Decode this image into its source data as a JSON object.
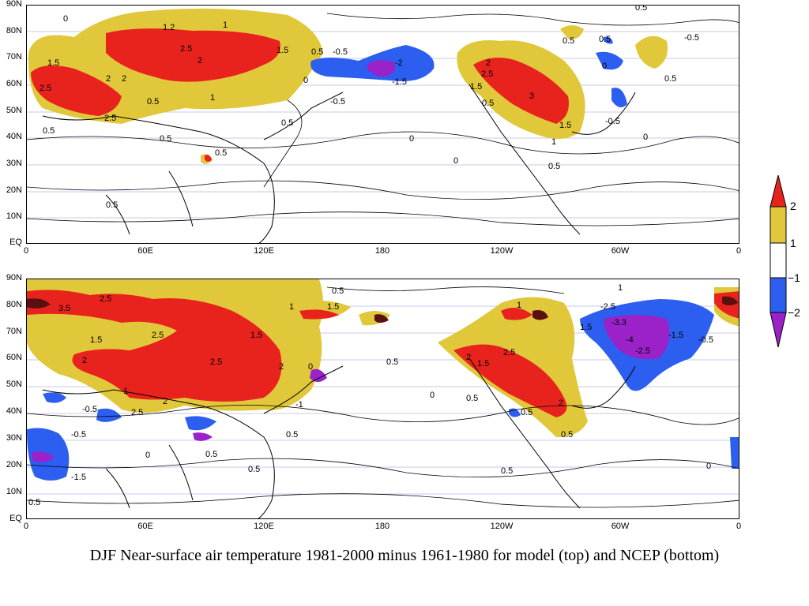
{
  "map": {
    "lat_labels": [
      "90N",
      "80N",
      "70N",
      "60N",
      "50N",
      "40N",
      "30N",
      "20N",
      "10N",
      "EQ"
    ],
    "lon_labels": [
      "0",
      "60E",
      "120E",
      "180",
      "120W",
      "60W",
      "0"
    ],
    "caption": "DJF Near-surface air temperature 1981-2000 minus 1961-1980 for model (top) and NCEP (bottom)"
  },
  "colorbar": {
    "labels": [
      "2",
      "1",
      "−1",
      "−2"
    ],
    "colors": {
      "above_2": "#e8231e",
      "1_to_2": "#e0c83a",
      "-1_to_1": "#ffffff",
      "-2_to_-1": "#2c5ff0",
      "below_-2": "#9a22c8"
    }
  },
  "panels": {
    "top": {
      "name": "model",
      "contour_labels": [
        "1.2",
        "1",
        "2.5",
        "2",
        "2",
        "2",
        "1.5",
        "2.5",
        "2.5",
        "1.5",
        "1",
        "0.5",
        "0.5",
        "0",
        "0.5",
        "-0.5",
        "-2",
        "-1.5",
        "-0.5",
        "0",
        "2",
        "2.5",
        "1.5",
        "3",
        "0.5",
        "1.5",
        "1",
        "0.5",
        "0.5",
        "-0.5",
        "0.5",
        "0",
        "0.5",
        "0",
        "-0.5",
        "0.5",
        "0.5",
        "0.5",
        "0",
        "0.5",
        "0.5",
        "0"
      ]
    },
    "bottom": {
      "name": "NCEP",
      "contour_labels": [
        "2.5",
        "3.5",
        "1.5",
        "2.5",
        "2.5",
        "2",
        "1.5",
        "1",
        "2",
        "2.5",
        "1",
        "0",
        "1.5",
        "0.5",
        "-0.5",
        "1",
        "1",
        "-2.5",
        "-3.3",
        "-4",
        "-2.5",
        "-1.5",
        "-0.5",
        "1.5",
        "2",
        "2.5",
        "2",
        "1.5",
        "2",
        "0.5",
        "0",
        "0.5",
        "0.5",
        "-0.5",
        "-1",
        "0.5",
        "0.5",
        "0.5",
        "-1.5",
        "0.5",
        "0.5",
        "0",
        "0.5",
        "0"
      ]
    }
  }
}
